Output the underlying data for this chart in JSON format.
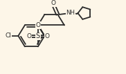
{
  "bg_color": "#fdf6e8",
  "bond_color": "#2a2a2a",
  "bond_width": 1.3,
  "figsize": [
    1.82,
    1.07
  ],
  "dpi": 100,
  "xlim": [
    0,
    9.5
  ],
  "ylim": [
    0,
    5.6
  ]
}
